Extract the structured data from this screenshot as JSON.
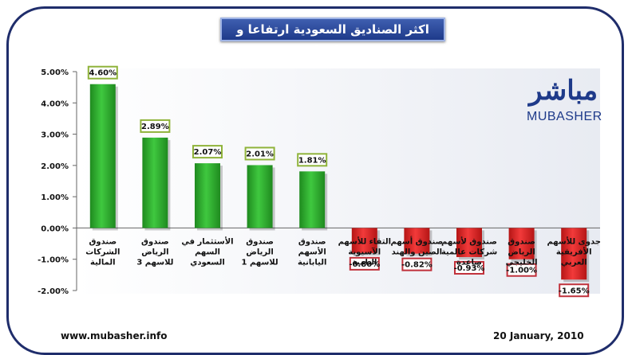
{
  "title": "اكثر الصناديق السعودية ارتفاعا و تراجعا",
  "logo": {
    "arabic": "مباشر",
    "english": "MUBASHER"
  },
  "footer": {
    "url": "www.mubasher.info",
    "date": "20 January, 2010"
  },
  "colors": {
    "frame": "#1f2d6b",
    "positive": "#2fae2f",
    "negative": "#e02020",
    "positive_label_border": "#8fb33a",
    "negative_label_border": "#c0303a"
  },
  "chart_data": {
    "type": "bar",
    "title": "اكثر الصناديق السعودية ارتفاعا و تراجعا",
    "xlabel": "",
    "ylabel": "",
    "ylim": [
      -2.0,
      5.0
    ],
    "yticks": [
      "5.00%",
      "4.00%",
      "3.00%",
      "2.00%",
      "1.00%",
      "0.00%",
      "-1.00%",
      "-2.00%"
    ],
    "grid": false,
    "categories": [
      [
        "صندوق",
        "الشركات",
        "المالية"
      ],
      [
        "صندوق",
        "الرياض",
        "للاسهم 3"
      ],
      [
        "الأستثمار في",
        "السهم",
        "السعودي"
      ],
      [
        "صندوق",
        "الرياض",
        "للاسهم 1"
      ],
      [
        "صندوق",
        "الأسهم",
        "اليابانية"
      ],
      [
        "التقاء للأسهم",
        "الآسيوية",
        "النامية"
      ],
      [
        "صندوق أسهم",
        "الصين والهند"
      ],
      [
        "صندوق لأسهم",
        "شركات عالمية",
        "صاعدة"
      ],
      [
        "صندوق",
        "الرياض",
        "الخليجي"
      ],
      [
        "جدوى للأسهم",
        "الأفريقية",
        "العربي"
      ]
    ],
    "values": [
      4.6,
      2.89,
      2.07,
      2.01,
      1.81,
      -0.8,
      -0.82,
      -0.93,
      -1.0,
      -1.65
    ],
    "data_labels": [
      "4.60%",
      "2.89%",
      "2.07%",
      "2.01%",
      "1.81%",
      "-0.80%",
      "-0.82%",
      "-0.93%",
      "-1.00%",
      "-1.65%"
    ]
  }
}
